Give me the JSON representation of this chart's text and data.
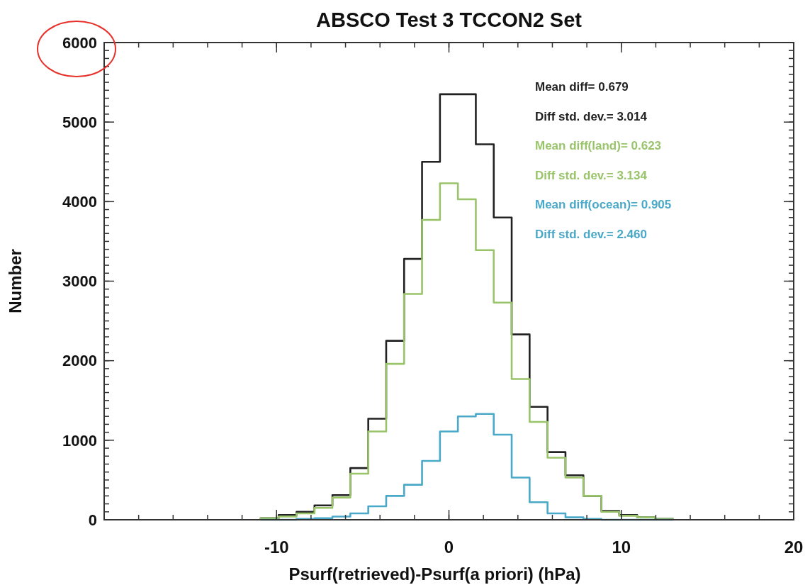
{
  "chart_data": {
    "type": "histogram",
    "title": "ABSCO Test 3 TCCON2 Set",
    "xlabel": "Psurf(retrieved)-Psurf(a priori) (hPa)",
    "ylabel": "Number",
    "bins": [
      -10.92,
      -9.88,
      -8.84,
      -7.8,
      -6.76,
      -5.72,
      -4.68,
      -3.64,
      -2.6,
      -1.56,
      -0.52,
      0.52,
      1.56,
      2.6,
      3.64,
      4.68,
      5.72,
      6.76,
      7.8,
      8.84,
      9.88,
      10.92,
      11.96,
      13.0
    ],
    "series": [
      {
        "color": "#222222",
        "values": [
          20,
          60,
          100,
          180,
          310,
          650,
          1270,
          2250,
          3280,
          4500,
          5350,
          5350,
          4720,
          3800,
          2330,
          1420,
          850,
          560,
          300,
          110,
          60,
          30,
          10
        ]
      },
      {
        "color": "#99c46a",
        "values": [
          20,
          40,
          80,
          150,
          280,
          580,
          1110,
          1960,
          2840,
          3770,
          4230,
          4030,
          3390,
          2730,
          1770,
          1230,
          780,
          530,
          300,
          100,
          50,
          30,
          10
        ]
      },
      {
        "color": "#4aa8c8",
        "values": [
          0,
          0,
          10,
          20,
          40,
          80,
          170,
          300,
          440,
          740,
          1110,
          1300,
          1330,
          1070,
          530,
          220,
          80,
          30,
          10,
          0,
          0,
          0,
          0
        ]
      }
    ],
    "annotations": [
      "Mean diff= 0.679",
      "Diff std. dev.= 3.014",
      "Mean diff(land)= 0.623",
      "Diff std. dev.= 3.134",
      "Mean diff(ocean)= 0.905",
      "Diff std. dev.= 2.460"
    ],
    "xlim": [
      -20,
      20
    ],
    "xticks": [
      -10,
      0,
      10,
      20
    ],
    "ylim": [
      0,
      6000
    ],
    "yticks": [
      0,
      1000,
      2000,
      3000,
      4000,
      5000,
      6000
    ],
    "grid": false
  }
}
